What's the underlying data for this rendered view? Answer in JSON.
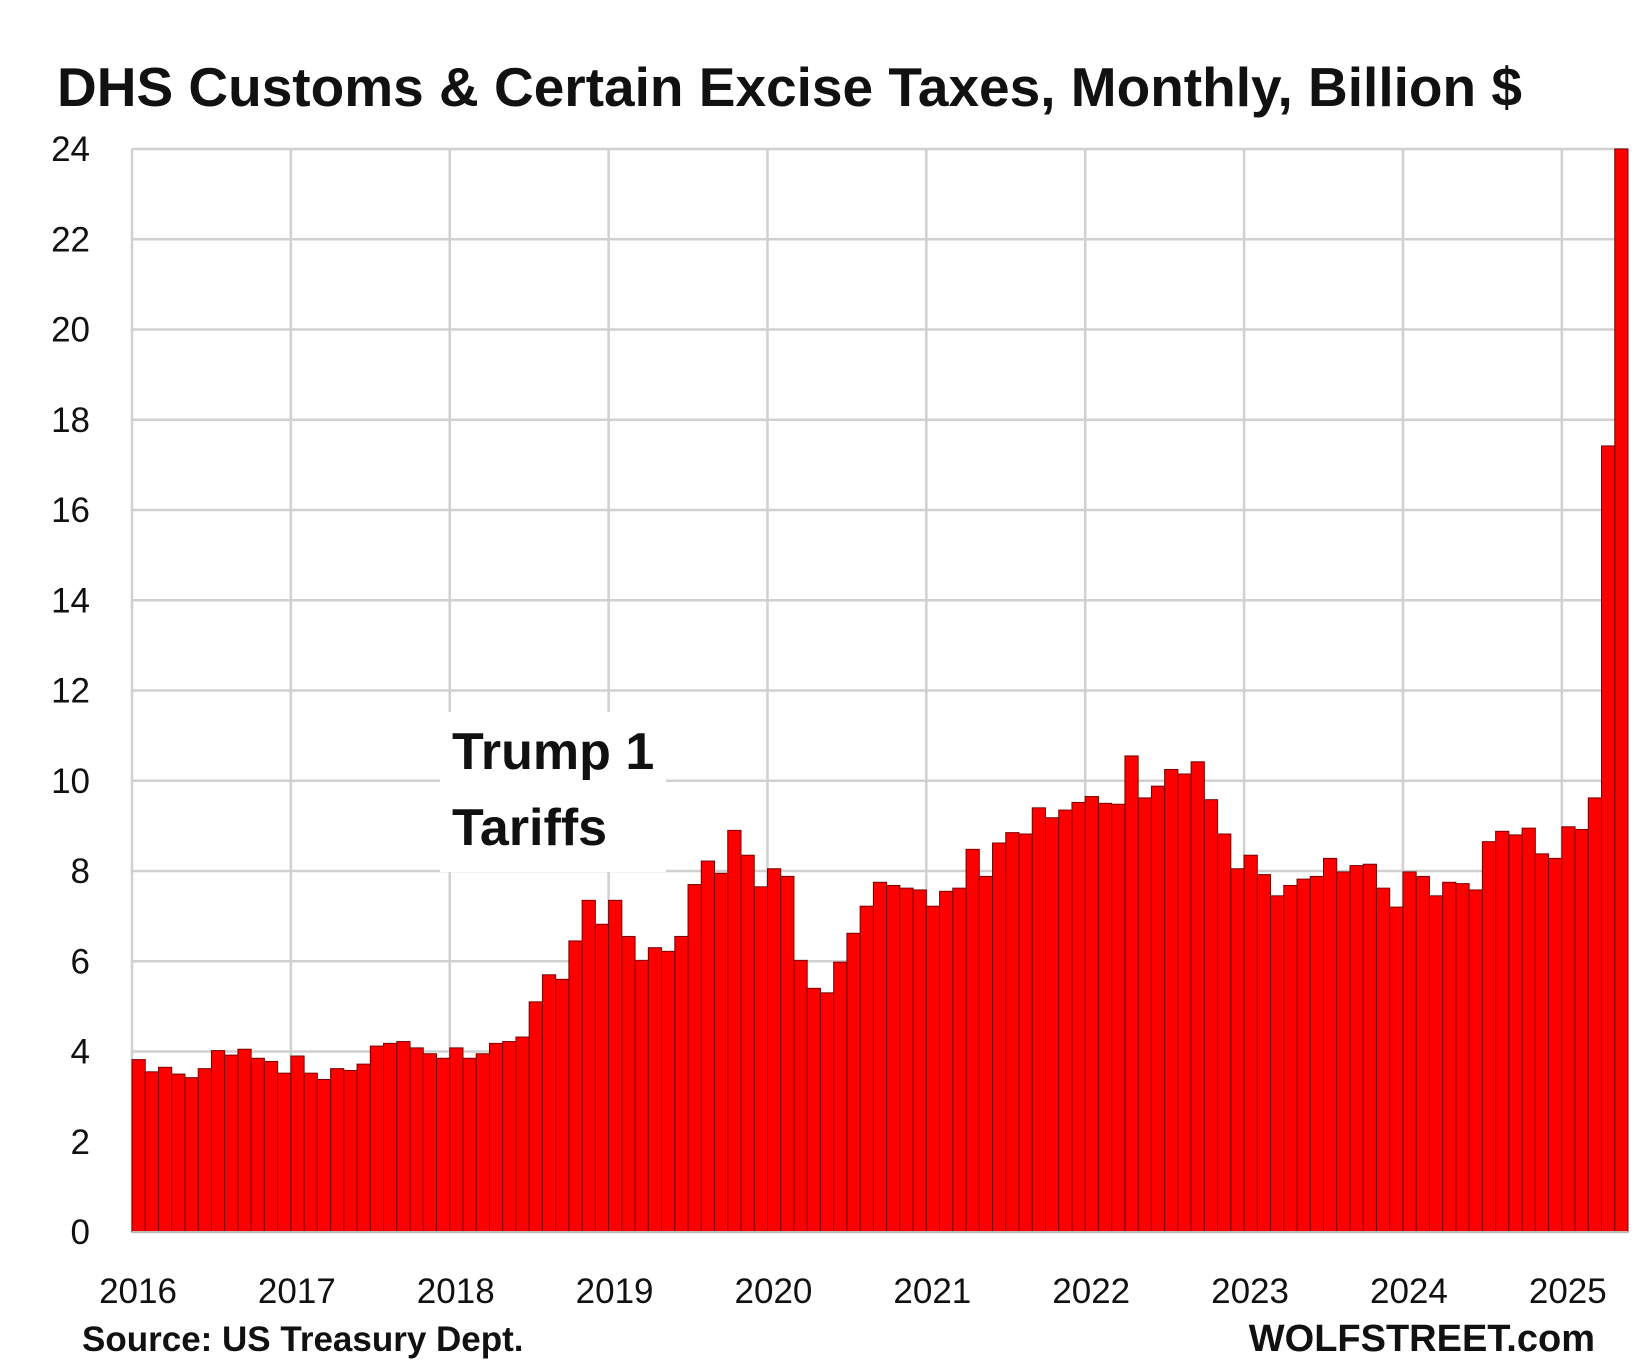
{
  "chart_data": {
    "type": "bar",
    "title": "DHS Customs & Certain Excise Taxes, Monthly, Billion $",
    "xlabel": "",
    "ylabel": "Billion $",
    "ylim": [
      0,
      24
    ],
    "yticks": [
      0,
      2,
      4,
      6,
      8,
      10,
      12,
      14,
      16,
      18,
      20,
      22,
      24
    ],
    "xticks": [
      "2016",
      "2017",
      "2018",
      "2019",
      "2020",
      "2021",
      "2022",
      "2023",
      "2024",
      "2025"
    ],
    "bar_color": "#ff0000",
    "start": "2016-01",
    "end": "2025-05",
    "values": [
      3.82,
      3.55,
      3.65,
      3.5,
      3.42,
      3.62,
      4.02,
      3.92,
      4.05,
      3.85,
      3.78,
      3.52,
      3.9,
      3.52,
      3.38,
      3.62,
      3.58,
      3.72,
      4.12,
      4.18,
      4.22,
      4.08,
      3.95,
      3.85,
      4.08,
      3.85,
      3.95,
      4.18,
      4.22,
      4.32,
      5.1,
      5.7,
      5.6,
      6.45,
      7.35,
      6.82,
      7.35,
      6.55,
      6.02,
      6.3,
      6.22,
      6.55,
      7.7,
      8.22,
      7.95,
      8.9,
      8.35,
      7.65,
      8.05,
      7.88,
      6.02,
      5.4,
      5.3,
      5.98,
      6.62,
      7.22,
      7.75,
      7.68,
      7.62,
      7.58,
      7.22,
      7.55,
      7.62,
      8.48,
      7.88,
      8.62,
      8.85,
      8.82,
      9.4,
      9.18,
      9.35,
      9.52,
      9.65,
      9.5,
      9.48,
      10.55,
      9.62,
      9.88,
      10.25,
      10.15,
      10.42,
      9.58,
      8.82,
      8.05,
      8.35,
      7.92,
      7.45,
      7.68,
      7.82,
      7.88,
      8.28,
      7.98,
      8.12,
      8.15,
      7.62,
      7.2,
      7.98,
      7.88,
      7.45,
      7.75,
      7.72,
      7.58,
      8.65,
      8.88,
      8.8,
      8.95,
      8.38,
      8.28,
      8.98,
      8.92,
      9.62,
      17.42,
      24.0
    ]
  },
  "annotation": {
    "line1": "Trump 1",
    "line2": "Tariffs"
  },
  "source": "Source: US Treasury Dept.",
  "brand": "WOLFSTREET.com"
}
